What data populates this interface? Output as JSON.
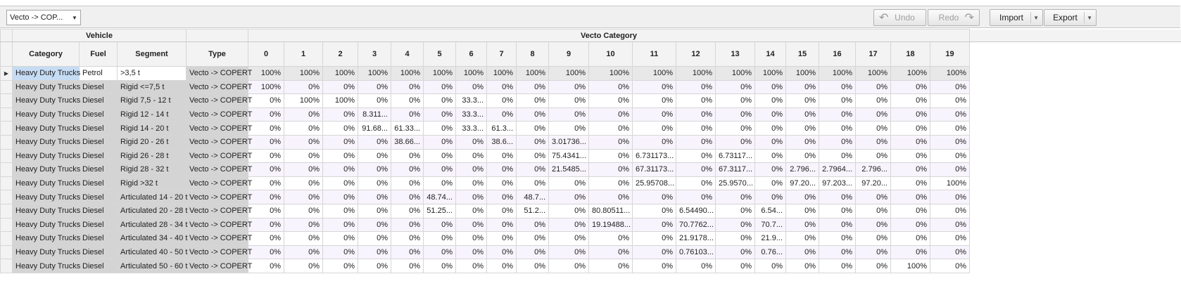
{
  "toolbar": {
    "combo_value": "Vecto -> COP...",
    "undo_label": "Undo",
    "redo_label": "Redo",
    "import_label": "Import",
    "export_label": "Export"
  },
  "grid": {
    "band_vehicle": "Vehicle",
    "band_vecto": "Vecto Category",
    "col_category": "Category",
    "col_fuel": "Fuel",
    "col_segment": "Segment",
    "col_type": "Type",
    "vecto_columns": [
      "0",
      "1",
      "2",
      "3",
      "4",
      "5",
      "6",
      "7",
      "8",
      "9",
      "10",
      "11",
      "12",
      "13",
      "14",
      "15",
      "16",
      "17",
      "18",
      "19"
    ],
    "rows": [
      {
        "category": "Heavy Duty Trucks",
        "fuel": "Petrol",
        "segment": ">3,5 t",
        "type": "Vecto -> COPERT",
        "values": [
          "100%",
          "100%",
          "100%",
          "100%",
          "100%",
          "100%",
          "100%",
          "100%",
          "100%",
          "100%",
          "100%",
          "100%",
          "100%",
          "100%",
          "100%",
          "100%",
          "100%",
          "100%",
          "100%",
          "100%"
        ]
      },
      {
        "category": "Heavy Duty Trucks",
        "fuel": "Diesel",
        "segment": "Rigid <=7,5 t",
        "type": "Vecto -> COPERT",
        "values": [
          "100%",
          "0%",
          "0%",
          "0%",
          "0%",
          "0%",
          "0%",
          "0%",
          "0%",
          "0%",
          "0%",
          "0%",
          "0%",
          "0%",
          "0%",
          "0%",
          "0%",
          "0%",
          "0%",
          "0%"
        ]
      },
      {
        "category": "Heavy Duty Trucks",
        "fuel": "Diesel",
        "segment": "Rigid 7,5 - 12 t",
        "type": "Vecto -> COPERT",
        "values": [
          "0%",
          "100%",
          "100%",
          "0%",
          "0%",
          "0%",
          "33.3...",
          "0%",
          "0%",
          "0%",
          "0%",
          "0%",
          "0%",
          "0%",
          "0%",
          "0%",
          "0%",
          "0%",
          "0%",
          "0%"
        ]
      },
      {
        "category": "Heavy Duty Trucks",
        "fuel": "Diesel",
        "segment": "Rigid 12 - 14 t",
        "type": "Vecto -> COPERT",
        "values": [
          "0%",
          "0%",
          "0%",
          "8.311...",
          "0%",
          "0%",
          "33.3...",
          "0%",
          "0%",
          "0%",
          "0%",
          "0%",
          "0%",
          "0%",
          "0%",
          "0%",
          "0%",
          "0%",
          "0%",
          "0%"
        ]
      },
      {
        "category": "Heavy Duty Trucks",
        "fuel": "Diesel",
        "segment": "Rigid 14 - 20 t",
        "type": "Vecto -> COPERT",
        "values": [
          "0%",
          "0%",
          "0%",
          "91.68...",
          "61.33...",
          "0%",
          "33.3...",
          "61.3...",
          "0%",
          "0%",
          "0%",
          "0%",
          "0%",
          "0%",
          "0%",
          "0%",
          "0%",
          "0%",
          "0%",
          "0%"
        ]
      },
      {
        "category": "Heavy Duty Trucks",
        "fuel": "Diesel",
        "segment": "Rigid 20 - 26 t",
        "type": "Vecto -> COPERT",
        "values": [
          "0%",
          "0%",
          "0%",
          "0%",
          "38.66...",
          "0%",
          "0%",
          "38.6...",
          "0%",
          "3.01736...",
          "0%",
          "0%",
          "0%",
          "0%",
          "0%",
          "0%",
          "0%",
          "0%",
          "0%",
          "0%"
        ]
      },
      {
        "category": "Heavy Duty Trucks",
        "fuel": "Diesel",
        "segment": "Rigid 26 - 28 t",
        "type": "Vecto -> COPERT",
        "values": [
          "0%",
          "0%",
          "0%",
          "0%",
          "0%",
          "0%",
          "0%",
          "0%",
          "0%",
          "75.4341...",
          "0%",
          "6.731173...",
          "0%",
          "6.73117...",
          "0%",
          "0%",
          "0%",
          "0%",
          "0%",
          "0%"
        ]
      },
      {
        "category": "Heavy Duty Trucks",
        "fuel": "Diesel",
        "segment": "Rigid 28 - 32 t",
        "type": "Vecto -> COPERT",
        "values": [
          "0%",
          "0%",
          "0%",
          "0%",
          "0%",
          "0%",
          "0%",
          "0%",
          "0%",
          "21.5485...",
          "0%",
          "67.31173...",
          "0%",
          "67.3117...",
          "0%",
          "2.796...",
          "2.7964...",
          "2.796...",
          "0%",
          "0%"
        ]
      },
      {
        "category": "Heavy Duty Trucks",
        "fuel": "Diesel",
        "segment": "Rigid >32 t",
        "type": "Vecto -> COPERT",
        "values": [
          "0%",
          "0%",
          "0%",
          "0%",
          "0%",
          "0%",
          "0%",
          "0%",
          "0%",
          "0%",
          "0%",
          "25.95708...",
          "0%",
          "25.9570...",
          "0%",
          "97.20...",
          "97.203...",
          "97.20...",
          "0%",
          "100%"
        ]
      },
      {
        "category": "Heavy Duty Trucks",
        "fuel": "Diesel",
        "segment": "Articulated 14 - 20 t",
        "type": "Vecto -> COPERT",
        "values": [
          "0%",
          "0%",
          "0%",
          "0%",
          "0%",
          "48.74...",
          "0%",
          "0%",
          "48.7...",
          "0%",
          "0%",
          "0%",
          "0%",
          "0%",
          "0%",
          "0%",
          "0%",
          "0%",
          "0%",
          "0%"
        ]
      },
      {
        "category": "Heavy Duty Trucks",
        "fuel": "Diesel",
        "segment": "Articulated 20 - 28 t",
        "type": "Vecto -> COPERT",
        "values": [
          "0%",
          "0%",
          "0%",
          "0%",
          "0%",
          "51.25...",
          "0%",
          "0%",
          "51.2...",
          "0%",
          "80.80511...",
          "0%",
          "6.54490...",
          "0%",
          "6.54...",
          "0%",
          "0%",
          "0%",
          "0%",
          "0%"
        ]
      },
      {
        "category": "Heavy Duty Trucks",
        "fuel": "Diesel",
        "segment": "Articulated 28 - 34 t",
        "type": "Vecto -> COPERT",
        "values": [
          "0%",
          "0%",
          "0%",
          "0%",
          "0%",
          "0%",
          "0%",
          "0%",
          "0%",
          "0%",
          "19.19488...",
          "0%",
          "70.7762...",
          "0%",
          "70.7...",
          "0%",
          "0%",
          "0%",
          "0%",
          "0%"
        ]
      },
      {
        "category": "Heavy Duty Trucks",
        "fuel": "Diesel",
        "segment": "Articulated 34 - 40 t",
        "type": "Vecto -> COPERT",
        "values": [
          "0%",
          "0%",
          "0%",
          "0%",
          "0%",
          "0%",
          "0%",
          "0%",
          "0%",
          "0%",
          "0%",
          "0%",
          "21.9178...",
          "0%",
          "21.9...",
          "0%",
          "0%",
          "0%",
          "0%",
          "0%"
        ]
      },
      {
        "category": "Heavy Duty Trucks",
        "fuel": "Diesel",
        "segment": "Articulated 40 - 50 t",
        "type": "Vecto -> COPERT",
        "values": [
          "0%",
          "0%",
          "0%",
          "0%",
          "0%",
          "0%",
          "0%",
          "0%",
          "0%",
          "0%",
          "0%",
          "0%",
          "0.76103...",
          "0%",
          "0.76...",
          "0%",
          "0%",
          "0%",
          "0%",
          "0%"
        ]
      },
      {
        "category": "Heavy Duty Trucks",
        "fuel": "Diesel",
        "segment": "Articulated 50 - 60 t",
        "type": "Vecto -> COPERT",
        "values": [
          "0%",
          "0%",
          "0%",
          "0%",
          "0%",
          "0%",
          "0%",
          "0%",
          "0%",
          "0%",
          "0%",
          "0%",
          "0%",
          "0%",
          "0%",
          "0%",
          "0%",
          "0%",
          "100%",
          "0%"
        ]
      }
    ]
  }
}
